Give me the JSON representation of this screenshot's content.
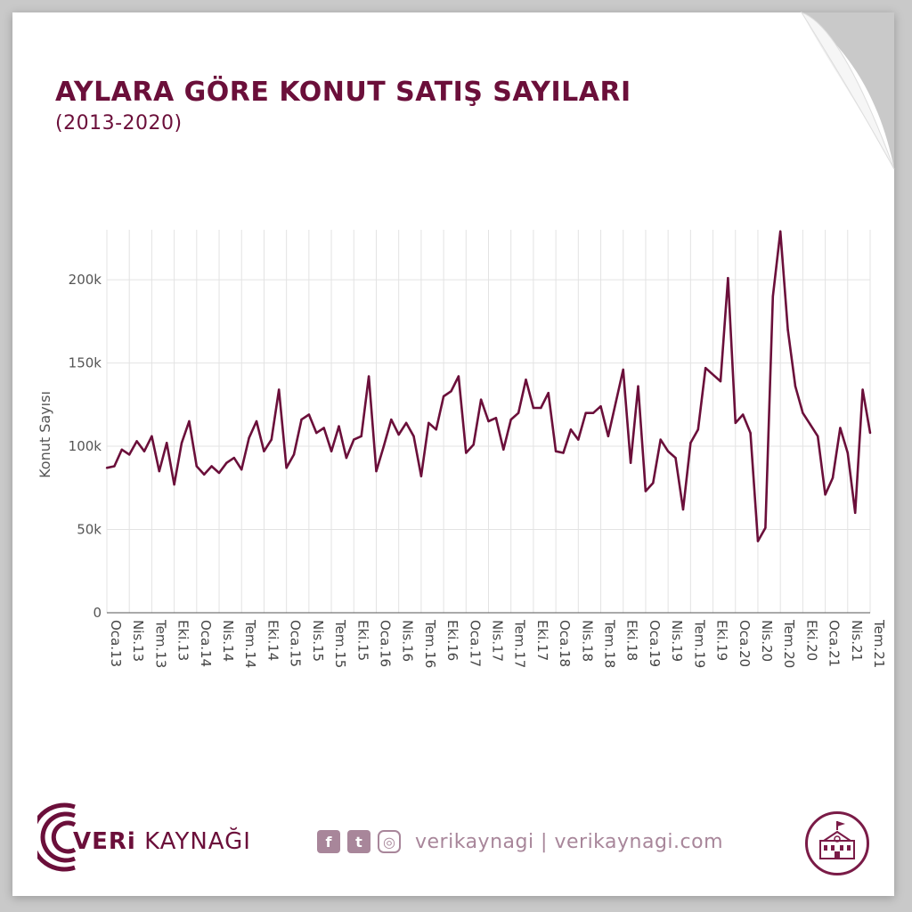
{
  "header": {
    "title": "AYLARA GÖRE KONUT SATIŞ SAYILARI",
    "subtitle": "(2013-2020)"
  },
  "footer": {
    "brand_bold": "VERi",
    "brand_rest": " KAYNAĞI",
    "handle": "verikaynagi | verikaynagi.com",
    "icons": [
      "facebook-icon",
      "twitter-icon",
      "instagram-icon",
      "school-building-icon"
    ]
  },
  "colors": {
    "accent": "#6b0f3a",
    "muted": "#a8869a",
    "grid": "#e3e3e3"
  },
  "chart_data": {
    "type": "line",
    "title": "AYLARA GÖRE KONUT SATIŞ SAYILARI",
    "subtitle": "(2013-2020)",
    "xlabel": "",
    "ylabel": "Konut Sayısı",
    "ylim": [
      0,
      230000
    ],
    "yticks": [
      0,
      50000,
      100000,
      150000,
      200000
    ],
    "ytick_labels": [
      "0",
      "50k",
      "100k",
      "150k",
      "200k"
    ],
    "grid": true,
    "x_start": "2013-01",
    "tick_labels": [
      "Oca.13",
      "Nis.13",
      "Tem.13",
      "Eki.13",
      "Oca.14",
      "Nis.14",
      "Tem.14",
      "Eki.14",
      "Oca.15",
      "Nis.15",
      "Tem.15",
      "Eki.15",
      "Oca.16",
      "Nis.16",
      "Tem.16",
      "Eki.16",
      "Oca.17",
      "Nis.17",
      "Tem.17",
      "Eki.17",
      "Oca.18",
      "Nis.18",
      "Tem.18",
      "Eki.18",
      "Oca.19",
      "Nis.19",
      "Tem.19",
      "Eki.19",
      "Oca.20",
      "Nis.20",
      "Tem.20",
      "Eki.20",
      "Oca.21",
      "Nis.21",
      "Tem.21"
    ],
    "series": [
      {
        "values": [
          87000,
          88000,
          98000,
          95000,
          103000,
          97000,
          106000,
          85000,
          102000,
          77000,
          102000,
          115000,
          88000,
          83000,
          88000,
          84000,
          90000,
          93000,
          86000,
          105000,
          115000,
          97000,
          104000,
          134000,
          87000,
          95000,
          116000,
          119000,
          108000,
          111000,
          97000,
          112000,
          93000,
          104000,
          106000,
          142000,
          85000,
          100000,
          116000,
          107000,
          114000,
          106000,
          82000,
          114000,
          110000,
          130000,
          133000,
          142000,
          96000,
          101000,
          128000,
          115000,
          117000,
          98000,
          116000,
          120000,
          140000,
          123000,
          123000,
          132000,
          97000,
          96000,
          110000,
          104000,
          120000,
          120000,
          124000,
          106000,
          126000,
          146000,
          90000,
          136000,
          73000,
          78000,
          104000,
          97000,
          93000,
          62000,
          102000,
          110000,
          147000,
          143000,
          139000,
          201000,
          114000,
          119000,
          108000,
          43000,
          51000,
          190000,
          229000,
          170000,
          136000,
          120000,
          113000,
          106000,
          71000,
          81000,
          111000,
          96000,
          60000,
          134000,
          108000
        ]
      }
    ]
  }
}
